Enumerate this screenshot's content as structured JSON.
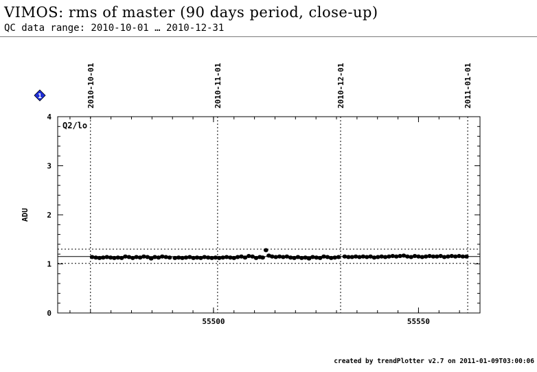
{
  "header": {
    "title": "VIMOS: rms of master (90 days period, close-up)",
    "subtitle": "QC data range: 2010-10-01 … 2010-12-31"
  },
  "footer": {
    "text": "created by trendPlotter v2.7 on 2011-01-09T03:00:06"
  },
  "marker": {
    "label": "1",
    "color": "#1f2fd6"
  },
  "chart_data": {
    "type": "scatter",
    "title": "Q2/lo",
    "xlabel": "",
    "ylabel": "ADU",
    "xlim": [
      55462,
      55565
    ],
    "ylim": [
      0,
      4
    ],
    "x_ticks": [
      55500,
      55550
    ],
    "x_tick_labels": [
      "55500",
      "55550"
    ],
    "y_ticks": [
      0,
      1,
      2,
      3,
      4
    ],
    "y_tick_labels": [
      "0",
      "1",
      "2",
      "3",
      "4"
    ],
    "date_markers": [
      {
        "label": "2010-10-01",
        "x": 55470
      },
      {
        "label": "2010-11-01",
        "x": 55501
      },
      {
        "label": "2010-12-01",
        "x": 55531
      },
      {
        "label": "2011-01-01",
        "x": 55562
      }
    ],
    "reference_lines": {
      "mean": 1.15,
      "upper": 1.3,
      "lower": 1.01
    },
    "grid": false,
    "series": [
      {
        "x": [
          55470.4,
          55471.3,
          55472.2,
          55473.1,
          55474.0,
          55474.9,
          55475.8,
          55476.7,
          55477.6,
          55478.5,
          55479.4,
          55480.3,
          55481.2,
          55482.1,
          55483.0,
          55483.9,
          55484.8,
          55485.7,
          55486.6,
          55487.5,
          55488.4,
          55489.3,
          55490.6,
          55491.5,
          55492.4,
          55493.3,
          55494.2,
          55495.1,
          55496.0,
          55496.9,
          55497.8,
          55498.7,
          55499.6,
          55500.5,
          55501.4,
          55502.3,
          55503.2,
          55504.1,
          55505.0,
          55505.9,
          55506.8,
          55507.7,
          55508.6,
          55509.5,
          55510.4,
          55511.3,
          55512.0,
          55512.8,
          55513.5,
          55514.3,
          55515.2,
          55516.1,
          55517.0,
          55517.9,
          55518.8,
          55519.7,
          55520.6,
          55521.5,
          55522.4,
          55523.3,
          55524.2,
          55525.1,
          55526.0,
          55526.9,
          55527.8,
          55528.7,
          55529.6,
          55530.5,
          55532.0,
          55532.9,
          55533.8,
          55534.7,
          55535.6,
          55536.5,
          55537.4,
          55538.3,
          55539.2,
          55540.1,
          55541.0,
          55541.9,
          55542.8,
          55543.7,
          55544.6,
          55545.5,
          55546.4,
          55547.3,
          55548.2,
          55549.1,
          55550.0,
          55550.9,
          55551.8,
          55552.7,
          55553.6,
          55554.5,
          55555.4,
          55556.3,
          55557.2,
          55558.1,
          55559.0,
          55559.9,
          55560.8,
          55561.7
        ],
        "y": [
          1.14,
          1.13,
          1.12,
          1.13,
          1.14,
          1.13,
          1.12,
          1.13,
          1.12,
          1.15,
          1.14,
          1.12,
          1.14,
          1.13,
          1.15,
          1.14,
          1.11,
          1.14,
          1.13,
          1.15,
          1.14,
          1.13,
          1.12,
          1.13,
          1.12,
          1.13,
          1.14,
          1.12,
          1.13,
          1.12,
          1.14,
          1.13,
          1.12,
          1.13,
          1.12,
          1.13,
          1.14,
          1.13,
          1.12,
          1.14,
          1.15,
          1.13,
          1.16,
          1.15,
          1.12,
          1.14,
          1.13,
          1.28,
          1.17,
          1.15,
          1.14,
          1.15,
          1.14,
          1.15,
          1.13,
          1.12,
          1.14,
          1.12,
          1.13,
          1.11,
          1.14,
          1.13,
          1.12,
          1.15,
          1.14,
          1.12,
          1.13,
          1.14,
          1.15,
          1.14,
          1.14,
          1.15,
          1.14,
          1.15,
          1.14,
          1.15,
          1.13,
          1.14,
          1.15,
          1.14,
          1.15,
          1.16,
          1.15,
          1.16,
          1.17,
          1.15,
          1.14,
          1.16,
          1.15,
          1.14,
          1.15,
          1.16,
          1.15,
          1.15,
          1.16,
          1.14,
          1.15,
          1.16,
          1.15,
          1.16,
          1.15,
          1.15
        ]
      }
    ]
  }
}
